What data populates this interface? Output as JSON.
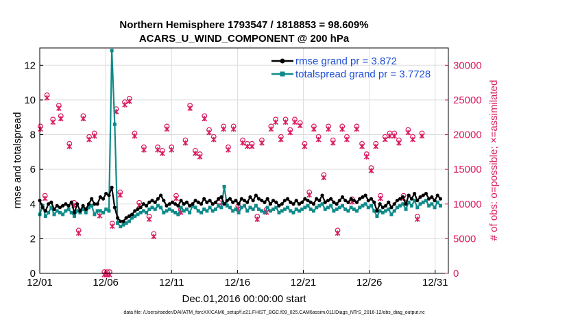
{
  "colors": {
    "rmse": "#000000",
    "spread": "#0f8a8a",
    "obs": "#d81b60",
    "legend_text": "#1f4fd6",
    "grid": "#dddddd"
  },
  "chart_data": {
    "type": "line",
    "title_line1": "Northern Hemisphere 1793547 / 1818853 = 98.609%",
    "title_line2": "ACARS_U_WIND_COMPONENT @ 200 hPa",
    "xlabel": "Dec.01,2016 00:00:00 start",
    "ylabel_left": "rmse and totalspread",
    "ylabel_right": "# of obs: o=possible; ×=assimilated",
    "xlim": [
      0,
      31
    ],
    "ylim_left": [
      0,
      13
    ],
    "ylim_right": [
      0,
      32500
    ],
    "x_ticks": [
      0,
      5,
      10,
      15,
      20,
      25,
      30
    ],
    "x_tick_labels": [
      "12/01",
      "12/06",
      "12/11",
      "12/16",
      "12/21",
      "12/26",
      "12/31"
    ],
    "y_ticks_left": [
      0,
      2,
      4,
      6,
      8,
      10,
      12
    ],
    "y_ticks_right": [
      0,
      5000,
      10000,
      15000,
      20000,
      25000,
      30000
    ],
    "legend": [
      "rmse grand pr = 3.872",
      "totalspread grand pr = 3.7728"
    ],
    "footer": "data file: /Users/raeder/DAI/ATM_forcXX/CAM6_setup/f.e21.FHIST_BGC.f09_025.CAM6assim.011/Diags_NTrS_2016-12/obs_diag_output.nc",
    "rmse_series": [
      4.2,
      3.8,
      3.6,
      4.0,
      4.1,
      3.7,
      3.9,
      3.8,
      3.9,
      4.0,
      3.9,
      4.1,
      3.5,
      4.0,
      3.6,
      3.9,
      3.7,
      4.0,
      4.3,
      4.0,
      4.0,
      4.4,
      4.3,
      4.6,
      4.5,
      4.95,
      3.8,
      3.2,
      3.0,
      3.0,
      3.2,
      3.3,
      3.4,
      3.6,
      3.7,
      3.8,
      4.0,
      3.9,
      4.1,
      4.2,
      4.1,
      4.3,
      4.5,
      4.2,
      3.9,
      4.0,
      4.1,
      4.0,
      3.9,
      4.2,
      4.0,
      4.1,
      3.9,
      4.0,
      4.2,
      4.1,
      4.0,
      4.3,
      4.1,
      4.2,
      4.0,
      4.1,
      4.3,
      4.4,
      4.0,
      4.2,
      4.3,
      4.1,
      4.2,
      4.0,
      4.3,
      4.2,
      4.1,
      4.4,
      4.2,
      4.5,
      4.3,
      4.2,
      4.1,
      4.3,
      4.0,
      4.2,
      4.1,
      3.9,
      4.0,
      4.2,
      4.3,
      4.1,
      4.0,
      4.2,
      4.0,
      4.1,
      4.3,
      4.2,
      4.1,
      4.0,
      4.3,
      4.2,
      4.5,
      4.1,
      4.2,
      4.3,
      4.1,
      4.0,
      4.2,
      4.4,
      4.2,
      4.1,
      4.3,
      4.2,
      4.1,
      4.3,
      4.4,
      4.5,
      4.2,
      4.3,
      4.1,
      3.6,
      4.0,
      3.8,
      3.9,
      4.1,
      3.8,
      4.0,
      4.2,
      4.3,
      4.4,
      4.0,
      4.5,
      4.3,
      4.6,
      4.2,
      4.4,
      4.5,
      4.6,
      4.3,
      4.4,
      4.2,
      4.5,
      4.3
    ],
    "spread_series": [
      3.4,
      3.9,
      3.3,
      3.5,
      3.8,
      3.4,
      3.6,
      3.5,
      3.4,
      3.6,
      3.7,
      3.5,
      3.3,
      3.6,
      3.5,
      3.7,
      3.5,
      3.8,
      3.9,
      3.4,
      3.6,
      3.6,
      3.5,
      3.7,
      3.6,
      12.85,
      8.6,
      2.9,
      2.7,
      2.8,
      2.9,
      3.0,
      3.2,
      3.3,
      3.4,
      3.5,
      3.6,
      3.5,
      3.7,
      3.8,
      3.7,
      3.9,
      3.8,
      3.5,
      3.6,
      3.7,
      3.6,
      3.5,
      3.4,
      3.8,
      3.6,
      3.7,
      3.5,
      3.9,
      3.8,
      3.6,
      3.5,
      3.7,
      3.6,
      3.8,
      3.6,
      3.7,
      3.9,
      3.8,
      5.0,
      3.9,
      3.8,
      3.6,
      3.7,
      3.5,
      3.8,
      3.9,
      3.6,
      3.8,
      3.7,
      3.9,
      3.7,
      3.6,
      3.5,
      3.8,
      3.6,
      3.7,
      3.8,
      3.5,
      3.6,
      3.7,
      3.8,
      3.6,
      3.5,
      3.7,
      3.6,
      3.7,
      3.8,
      3.9,
      3.7,
      3.6,
      3.8,
      3.9,
      4.0,
      3.7,
      3.8,
      3.9,
      3.6,
      3.7,
      3.8,
      3.9,
      3.7,
      3.6,
      3.8,
      3.7,
      3.6,
      3.8,
      3.9,
      4.0,
      3.8,
      3.9,
      3.6,
      3.3,
      3.6,
      3.5,
      3.6,
      3.7,
      3.4,
      3.6,
      3.8,
      3.9,
      4.0,
      3.7,
      4.1,
      3.9,
      4.2,
      3.8,
      4.0,
      4.1,
      4.2,
      3.9,
      4.0,
      3.8,
      4.1,
      3.9
    ],
    "obs_counts": [
      21000,
      11000,
      25500,
      22000,
      24000,
      22500,
      18500,
      10000,
      6000,
      22500,
      19500,
      20000,
      8500,
      0,
      0,
      0,
      7000,
      23500,
      11500,
      24500,
      25000,
      20000,
      10000,
      18000,
      8000,
      5500,
      18000,
      17500,
      21000,
      18000,
      11000,
      9000,
      19000,
      24000,
      17500,
      17000,
      22500,
      20500,
      19500,
      10000,
      21000,
      18000,
      21000,
      9500,
      19000,
      18500,
      18500,
      8000,
      19000,
      9000,
      21000,
      22000,
      19500,
      22000,
      20500,
      22000,
      21500,
      18500,
      11500,
      21000,
      19500,
      14000,
      21000,
      19000,
      6000,
      21000,
      19500,
      10500,
      21000,
      18500,
      17000,
      15000,
      18500,
      11000,
      19500,
      20000,
      20000,
      19000,
      11000,
      20500,
      19500,
      8000,
      20000
    ],
    "obs_x": [
      0.05,
      0.4,
      0.55,
      1.0,
      1.45,
      1.6,
      2.25,
      2.6,
      2.95,
      3.3,
      3.75,
      4.15,
      4.55,
      4.9,
      5.1,
      5.3,
      5.5,
      5.8,
      6.1,
      6.45,
      6.8,
      7.2,
      7.55,
      7.9,
      8.3,
      8.65,
      8.95,
      9.3,
      9.65,
      10.0,
      10.35,
      10.7,
      11.05,
      11.4,
      11.8,
      12.15,
      12.5,
      12.85,
      13.2,
      13.6,
      13.95,
      14.3,
      14.7,
      15.05,
      15.4,
      15.75,
      16.1,
      16.5,
      16.85,
      17.2,
      17.55,
      17.9,
      18.3,
      18.65,
      19.0,
      19.35,
      19.75,
      20.1,
      20.45,
      20.8,
      21.15,
      21.55,
      21.9,
      22.25,
      22.6,
      22.95,
      23.3,
      23.7,
      24.05,
      24.45,
      24.8,
      25.15,
      25.5,
      25.85,
      26.2,
      26.55,
      26.9,
      27.25,
      27.6,
      27.95,
      28.3,
      28.65,
      29.0
    ]
  }
}
